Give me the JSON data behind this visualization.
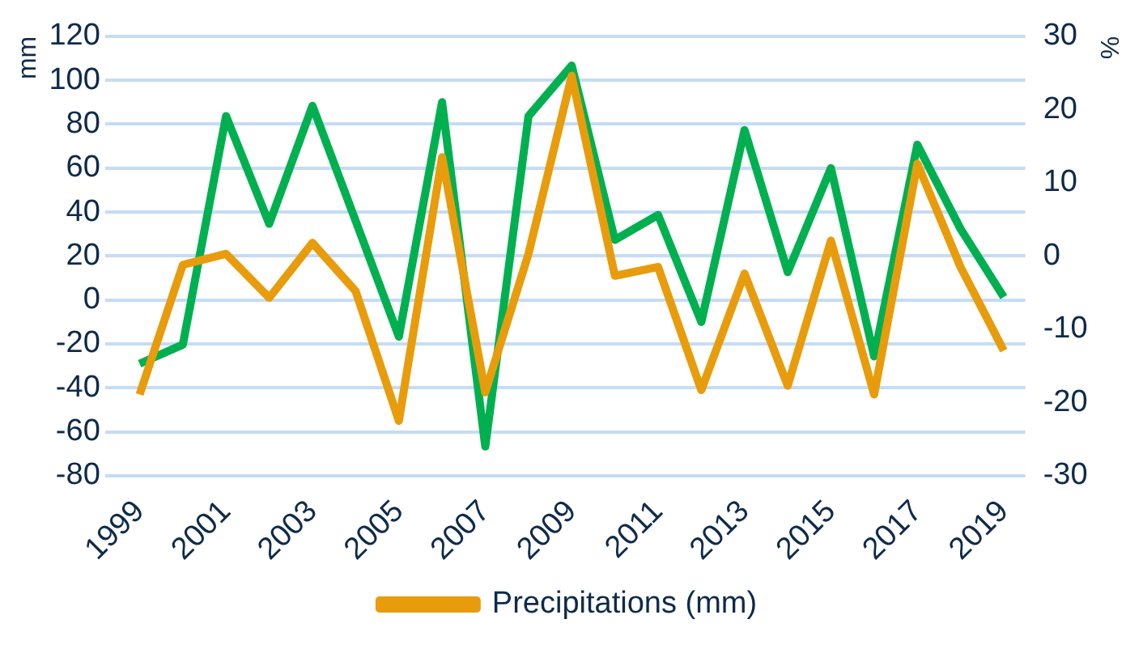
{
  "chart_data": {
    "type": "line",
    "ylabel": "mm",
    "y2label": "%",
    "categories": [
      "1999",
      null,
      "2001",
      null,
      "2003",
      null,
      "2005",
      null,
      "2007",
      null,
      "2009",
      null,
      "2011",
      null,
      "2013",
      null,
      "2015",
      null,
      "2017",
      null,
      "2019"
    ],
    "series": [
      {
        "name": "Precipitations (mm)",
        "color": "#e89c0c",
        "values": [
          -43,
          16,
          21,
          1,
          26,
          4,
          -55,
          65,
          -42,
          21,
          102,
          11,
          15,
          -41,
          12,
          -39,
          27,
          -43,
          62,
          15,
          -23
        ]
      },
      {
        "color": "#00b050",
        "axis": "y2",
        "values": [
          -14.7,
          -12.1,
          19.1,
          4.4,
          20.5,
          4.8,
          -11,
          21,
          -26,
          19.1,
          26,
          2.2,
          5.6,
          -9,
          17.2,
          -2.2,
          12,
          -13.7,
          15.2,
          3.7,
          -5.6
        ]
      }
    ],
    "ylim": [
      -80,
      120
    ],
    "yticks": [
      -80,
      -60,
      -40,
      -20,
      0,
      20,
      40,
      60,
      80,
      100,
      120
    ],
    "y2lim": [
      -30,
      30
    ],
    "y2ticks": [
      -30,
      -20,
      -10,
      0,
      10,
      20,
      30
    ],
    "grid": "y",
    "legend": "bottom",
    "marker": "none",
    "line_style": "solid"
  }
}
